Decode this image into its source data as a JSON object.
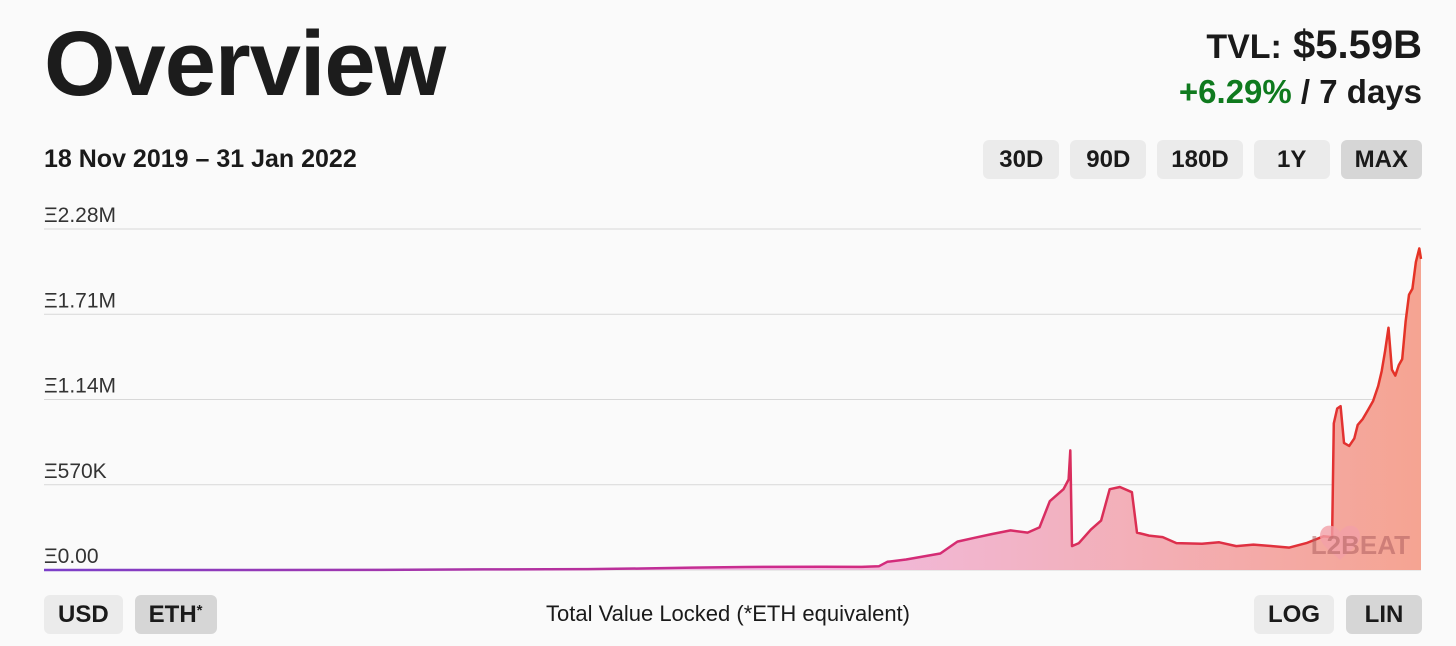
{
  "header": {
    "title": "Overview",
    "tvl_label": "TVL:",
    "tvl_value": "$5.59B",
    "change_value": "+6.29%",
    "change_period": "/ 7 days"
  },
  "date_range": "18 Nov 2019 – 31 Jan 2022",
  "range_buttons": [
    {
      "label": "30D",
      "active": false
    },
    {
      "label": "90D",
      "active": false
    },
    {
      "label": "180D",
      "active": false
    },
    {
      "label": "1Y",
      "active": false
    },
    {
      "label": "MAX",
      "active": true
    }
  ],
  "currency_buttons": {
    "usd": "USD",
    "eth": "ETH",
    "eth_mark": "*"
  },
  "scale_buttons": {
    "log": "LOG",
    "lin": "LIN"
  },
  "watermark": {
    "text": "L2BEAT"
  },
  "colors": {
    "positive": "#0f7a1e",
    "line_start": "#7b3fc9",
    "line_mid": "#d02a8a",
    "line_end": "#e53324",
    "fill_start": "#f0b8e0",
    "fill_end": "#f5a492"
  },
  "chart_data": {
    "type": "area",
    "caption": "Total Value Locked (*ETH equivalent)",
    "scale": "linear",
    "x_range": [
      "2019-11-18",
      "2022-01-31"
    ],
    "ylim": [
      0,
      2280000
    ],
    "yticks": [
      {
        "value": 0,
        "label": "Ξ0.00"
      },
      {
        "value": 570000,
        "label": "Ξ570K"
      },
      {
        "value": 1140000,
        "label": "Ξ1.14M"
      },
      {
        "value": 1710000,
        "label": "Ξ1.71M"
      },
      {
        "value": 2280000,
        "label": "Ξ2.28M"
      }
    ],
    "grid": true,
    "points": [
      [
        "2019-11-18",
        0
      ],
      [
        "2020-03-01",
        0
      ],
      [
        "2020-06-01",
        1000
      ],
      [
        "2020-08-01",
        4000
      ],
      [
        "2020-10-01",
        6000
      ],
      [
        "2020-11-01",
        10000
      ],
      [
        "2020-12-01",
        16000
      ],
      [
        "2021-01-01",
        20000
      ],
      [
        "2021-02-15",
        22000
      ],
      [
        "2021-03-10",
        21000
      ],
      [
        "2021-03-20",
        25000
      ],
      [
        "2021-03-25",
        55000
      ],
      [
        "2021-04-05",
        70000
      ],
      [
        "2021-04-25",
        110000
      ],
      [
        "2021-05-05",
        190000
      ],
      [
        "2021-05-15",
        215000
      ],
      [
        "2021-05-25",
        240000
      ],
      [
        "2021-06-05",
        265000
      ],
      [
        "2021-06-15",
        250000
      ],
      [
        "2021-06-22",
        285000
      ],
      [
        "2021-06-28",
        460000
      ],
      [
        "2021-07-06",
        540000
      ],
      [
        "2021-07-09",
        605000
      ],
      [
        "2021-07-10",
        800000
      ],
      [
        "2021-07-11",
        160000
      ],
      [
        "2021-07-15",
        180000
      ],
      [
        "2021-07-22",
        270000
      ],
      [
        "2021-07-28",
        330000
      ],
      [
        "2021-08-02",
        540000
      ],
      [
        "2021-08-08",
        555000
      ],
      [
        "2021-08-15",
        520000
      ],
      [
        "2021-08-18",
        250000
      ],
      [
        "2021-08-25",
        230000
      ],
      [
        "2021-09-02",
        220000
      ],
      [
        "2021-09-10",
        180000
      ],
      [
        "2021-09-25",
        175000
      ],
      [
        "2021-10-05",
        185000
      ],
      [
        "2021-10-15",
        160000
      ],
      [
        "2021-10-25",
        170000
      ],
      [
        "2021-11-05",
        160000
      ],
      [
        "2021-11-15",
        150000
      ],
      [
        "2021-11-25",
        180000
      ],
      [
        "2021-12-05",
        225000
      ],
      [
        "2021-12-10",
        220000
      ],
      [
        "2021-12-11",
        980000
      ],
      [
        "2021-12-13",
        1080000
      ],
      [
        "2021-12-15",
        1095000
      ],
      [
        "2021-12-17",
        850000
      ],
      [
        "2021-12-20",
        830000
      ],
      [
        "2021-12-23",
        880000
      ],
      [
        "2021-12-25",
        970000
      ],
      [
        "2021-12-28",
        1010000
      ],
      [
        "2021-12-31",
        1070000
      ],
      [
        "2022-01-03",
        1130000
      ],
      [
        "2022-01-06",
        1230000
      ],
      [
        "2022-01-08",
        1330000
      ],
      [
        "2022-01-10",
        1465000
      ],
      [
        "2022-01-12",
        1620000
      ],
      [
        "2022-01-14",
        1340000
      ],
      [
        "2022-01-16",
        1300000
      ],
      [
        "2022-01-18",
        1370000
      ],
      [
        "2022-01-20",
        1410000
      ],
      [
        "2022-01-22",
        1660000
      ],
      [
        "2022-01-24",
        1840000
      ],
      [
        "2022-01-26",
        1880000
      ],
      [
        "2022-01-28",
        2060000
      ],
      [
        "2022-01-30",
        2150000
      ],
      [
        "2022-01-31",
        2080000
      ]
    ]
  }
}
